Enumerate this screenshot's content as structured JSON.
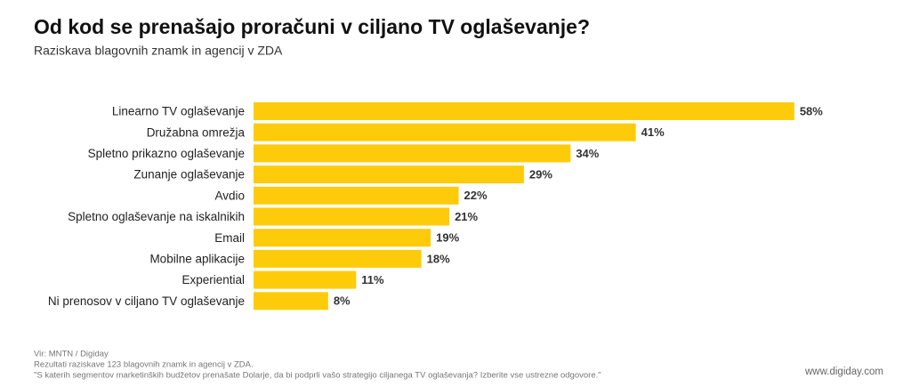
{
  "chart_data": {
    "type": "bar",
    "orientation": "horizontal",
    "title": "Od kod se prenašajo proračuni v ciljano TV oglaševanje?",
    "subtitle": "Raziskava blagovnih znamk in agencij v ZDA",
    "categories": [
      "Linearno TV oglaševanje",
      "Družabna omrežja",
      "Spletno prikazno oglaševanje",
      "Zunanje oglaševanje",
      "Avdio",
      "Spletno oglaševanje na iskalnikih",
      "Email",
      "Mobilne aplikacije",
      "Experiential",
      "Ni prenosov v ciljano TV oglaševanje"
    ],
    "values": [
      58,
      41,
      34,
      29,
      22,
      21,
      19,
      18,
      11,
      8
    ],
    "value_labels": [
      "58%",
      "41%",
      "34%",
      "29%",
      "22%",
      "21%",
      "19%",
      "18%",
      "11%",
      "8%"
    ],
    "color": "#fdcb0a",
    "notes": [
      "Vir: MNTN / Digiday",
      "Rezultati raziskave 123 blagovnih znamk in agencij v ZDA.",
      "\"S katerih segmentov marketinških budžetov prenašate Dolarje, da bi podprli vašo strategijo ciljanega TV oglaševanja? Izberite vse ustrezne odgovore.\""
    ],
    "website": "www.digiday.com"
  }
}
